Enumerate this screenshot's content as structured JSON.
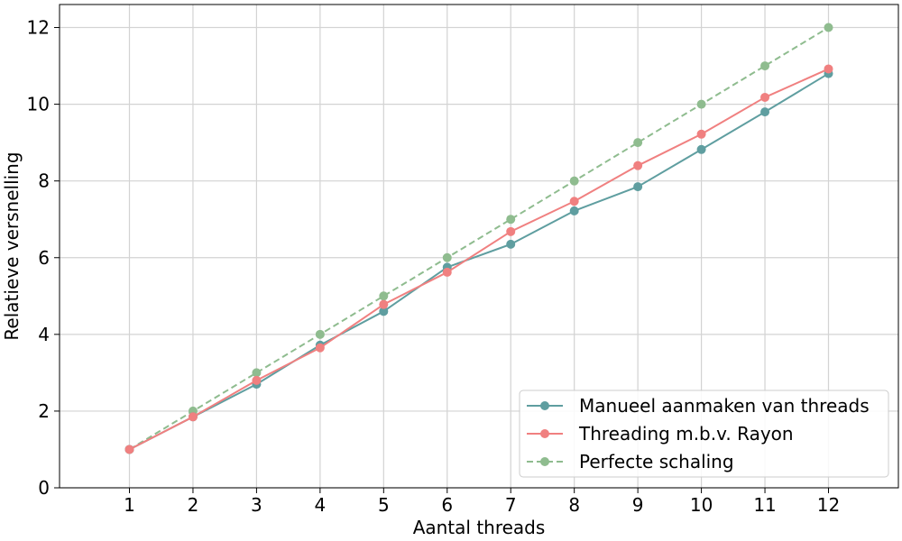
{
  "chart_data": {
    "type": "line",
    "xlabel": "Aantal threads",
    "ylabel": "Relatieve versnelling",
    "x": [
      1,
      2,
      3,
      4,
      5,
      6,
      7,
      8,
      9,
      10,
      11,
      12
    ],
    "xlim": [
      -0.1,
      13.1
    ],
    "ylim": [
      0,
      12.6
    ],
    "xticks": [
      1,
      2,
      3,
      4,
      5,
      6,
      7,
      8,
      9,
      10,
      11,
      12
    ],
    "yticks": [
      0,
      2,
      4,
      6,
      8,
      10,
      12
    ],
    "grid": true,
    "legend_position": "bottom-right",
    "series": [
      {
        "name": "Manueel aanmaken van threads",
        "color": "#5f9ea0",
        "style": "solid",
        "values": [
          1.0,
          1.85,
          2.7,
          3.72,
          4.6,
          5.75,
          6.35,
          7.22,
          7.85,
          8.82,
          9.8,
          10.8
        ]
      },
      {
        "name": "Threading m.b.v. Rayon",
        "color": "#f08080",
        "style": "solid",
        "values": [
          1.0,
          1.85,
          2.8,
          3.65,
          4.78,
          5.62,
          6.68,
          7.47,
          8.4,
          9.22,
          10.18,
          10.92
        ]
      },
      {
        "name": "Perfecte schaling",
        "color": "#8fbc8f",
        "style": "dashed",
        "values": [
          1,
          2,
          3,
          4,
          5,
          6,
          7,
          8,
          9,
          10,
          11,
          12
        ]
      }
    ]
  }
}
